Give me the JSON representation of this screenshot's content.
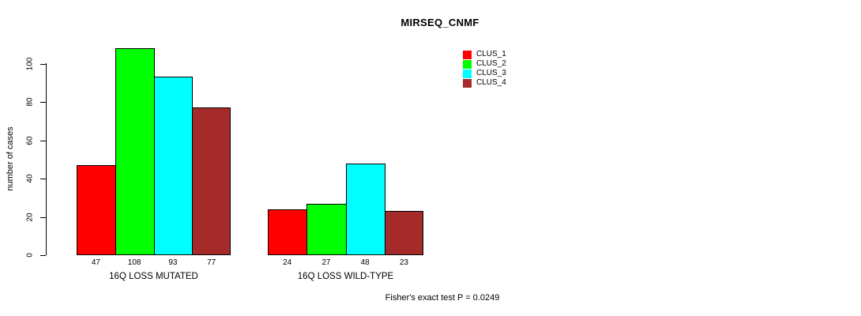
{
  "title": "MIRSEQ_CNMF",
  "y_axis": {
    "label": "number of cases",
    "ticks": [
      0,
      20,
      40,
      60,
      80,
      100
    ]
  },
  "footer": {
    "text": "Fisher's exact test P = 0.0249"
  },
  "chart_data": {
    "type": "bar",
    "title": "MIRSEQ_CNMF",
    "xlabel": "",
    "ylabel": "number of cases",
    "categories": [
      "16Q LOSS MUTATED",
      "16Q LOSS WILD-TYPE"
    ],
    "series": [
      {
        "name": "CLUS_1",
        "color": "#FF0000",
        "values": [
          47,
          24
        ]
      },
      {
        "name": "CLUS_2",
        "color": "#00FF00",
        "values": [
          108,
          27
        ]
      },
      {
        "name": "CLUS_3",
        "color": "#00FFFF",
        "values": [
          93,
          48
        ]
      },
      {
        "name": "CLUS_4",
        "color": "#A52A2A",
        "values": [
          77,
          23
        ]
      }
    ],
    "yticks": [
      0,
      20,
      40,
      60,
      80,
      100
    ],
    "ylim": [
      0,
      108
    ],
    "bar_value_labels_shown": true,
    "legend_position": "top-right",
    "legend_entries": [
      "CLUS_1",
      "CLUS_2",
      "CLUS_3",
      "CLUS_4"
    ],
    "grid": false,
    "annotation": "Fisher's exact test P = 0.0249"
  }
}
